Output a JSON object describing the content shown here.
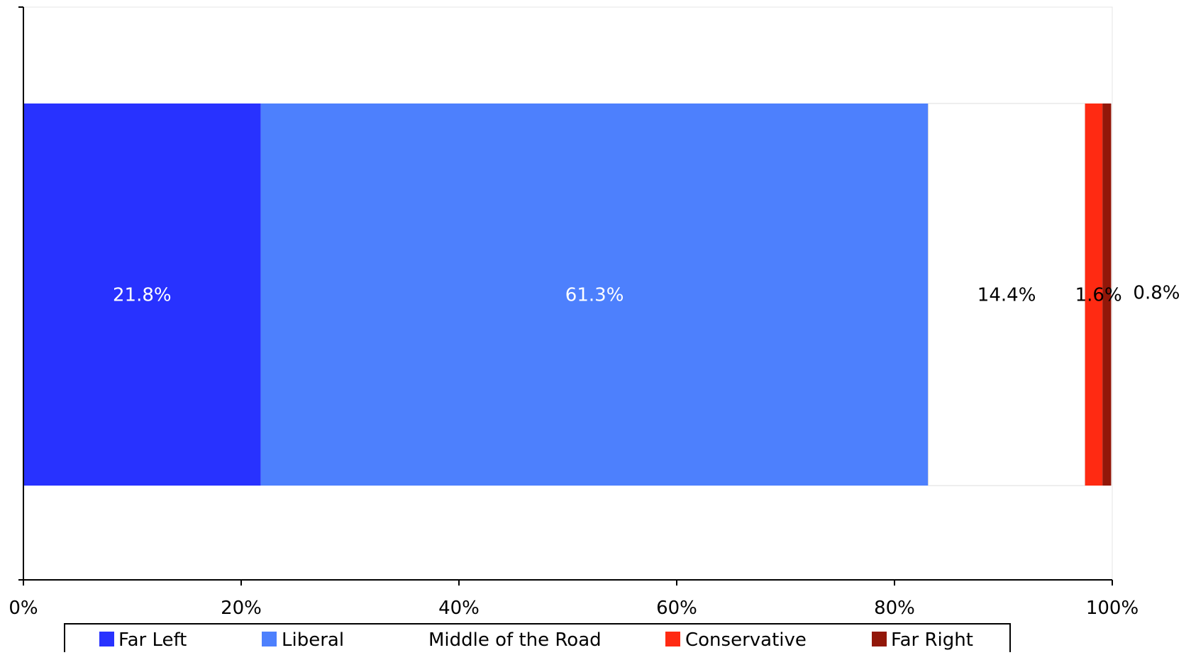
{
  "chart_data": {
    "type": "bar",
    "orientation": "horizontal",
    "stacked": true,
    "percent_stacked": true,
    "categories": [
      ""
    ],
    "series": [
      {
        "name": "Far Left",
        "values": [
          21.8
        ],
        "label": "21.8%",
        "color": "#2832FF",
        "label_color": "#ffffff"
      },
      {
        "name": "Liberal",
        "values": [
          61.3
        ],
        "label": "61.3%",
        "color": "#4D80FD",
        "label_color": "#ffffff"
      },
      {
        "name": "Middle of the Road",
        "values": [
          14.4
        ],
        "label": "14.4%",
        "color": "#ffffff",
        "label_color": "#000000"
      },
      {
        "name": "Conservative",
        "values": [
          1.6
        ],
        "label": "1.6%",
        "color": "#FF2A12",
        "label_color": "#000000"
      },
      {
        "name": "Far Right",
        "values": [
          0.8
        ],
        "label": "0.8%",
        "color": "#921709",
        "label_color": "#000000"
      }
    ],
    "xlim": [
      0,
      100
    ],
    "x_ticks": [
      "0%",
      "20%",
      "40%",
      "60%",
      "80%",
      "100%"
    ],
    "grid": false,
    "legend_position": "bottom",
    "title": "",
    "xlabel": "",
    "ylabel": ""
  }
}
